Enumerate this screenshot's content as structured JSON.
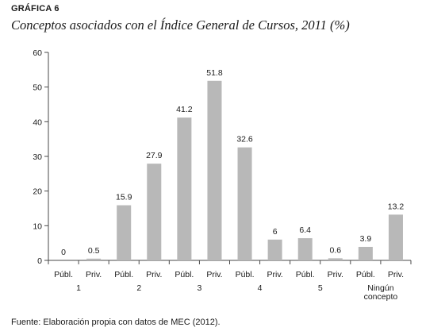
{
  "figure": {
    "label": "GRÁFICA 6",
    "title": "Conceptos asociados con el Índice General de Cursos, 2011 (%)",
    "source": "Fuente: Elaboración propia con datos de MEC (2012)."
  },
  "chart_data": {
    "type": "bar",
    "ylim": [
      0,
      60
    ],
    "yticks": [
      0,
      10,
      20,
      30,
      40,
      50,
      60
    ],
    "bar_color": "#b8b8b8",
    "axis_color": "#4a4a4a",
    "groups": [
      {
        "lines": [
          "1"
        ]
      },
      {
        "lines": [
          "2"
        ]
      },
      {
        "lines": [
          "3"
        ]
      },
      {
        "lines": [
          "4"
        ]
      },
      {
        "lines": [
          "5"
        ]
      },
      {
        "lines": [
          "Ningún",
          "concepto"
        ]
      }
    ],
    "bars": [
      {
        "label": "Públ.",
        "value": 0,
        "value_label": "0"
      },
      {
        "label": "Priv.",
        "value": 0.5,
        "value_label": "0.5"
      },
      {
        "label": "Públ.",
        "value": 15.9,
        "value_label": "15.9"
      },
      {
        "label": "Priv.",
        "value": 27.9,
        "value_label": "27.9"
      },
      {
        "label": "Públ.",
        "value": 41.2,
        "value_label": "41.2"
      },
      {
        "label": "Priv.",
        "value": 51.8,
        "value_label": "51.8"
      },
      {
        "label": "Públ.",
        "value": 32.6,
        "value_label": "32.6"
      },
      {
        "label": "Priv.",
        "value": 6,
        "value_label": "6"
      },
      {
        "label": "Públ.",
        "value": 6.4,
        "value_label": "6.4"
      },
      {
        "label": "Priv.",
        "value": 0.6,
        "value_label": "0.6"
      },
      {
        "label": "Públ.",
        "value": 3.9,
        "value_label": "3.9"
      },
      {
        "label": "Priv.",
        "value": 13.2,
        "value_label": "13.2"
      }
    ]
  }
}
